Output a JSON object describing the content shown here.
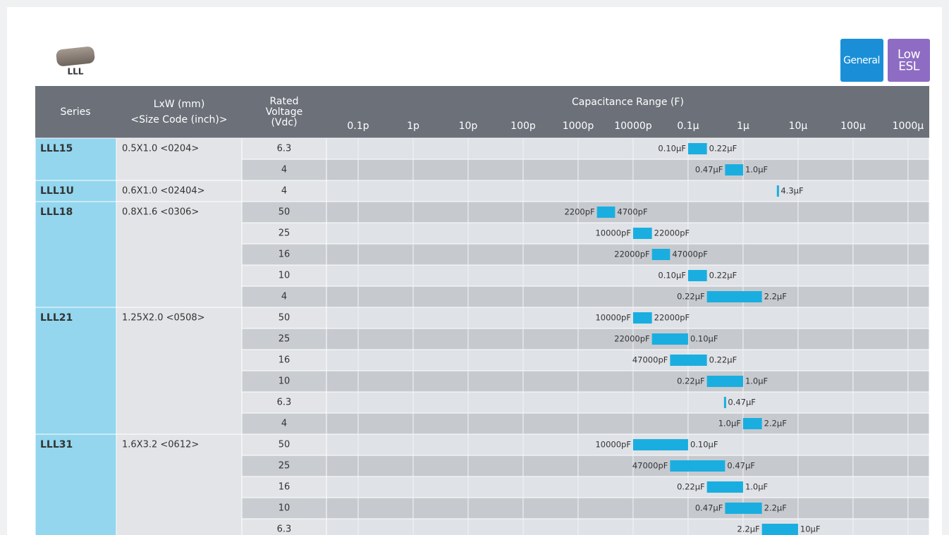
{
  "header": {
    "product_label": "LLL",
    "badges": [
      [
        "General"
      ],
      [
        "Low",
        "ESL"
      ]
    ]
  },
  "table": {
    "columns": [
      [
        "Series"
      ],
      [
        "LxW (mm)",
        "<Size Code (inch)>"
      ],
      [
        "Rated",
        "Voltage",
        "(Vdc)"
      ]
    ]
  },
  "chart_data": {
    "type": "range_bar",
    "title": "Capacitance Range (F)",
    "log": true,
    "grid": true,
    "color": "#1aaee0",
    "xlim": [
      2.65e-14,
      0.00243
    ],
    "xticks": [
      {
        "value": 1e-13,
        "label": "0.1p"
      },
      {
        "value": 1e-12,
        "label": "1p"
      },
      {
        "value": 1e-11,
        "label": "10p"
      },
      {
        "value": 1e-10,
        "label": "100p"
      },
      {
        "value": 1e-09,
        "label": "1000p"
      },
      {
        "value": 1e-08,
        "label": "10000p"
      },
      {
        "value": 1e-07,
        "label": "0.1µ"
      },
      {
        "value": 1e-06,
        "label": "1µ"
      },
      {
        "value": 1e-05,
        "label": "10µ"
      },
      {
        "value": 0.0001,
        "label": "100µ"
      },
      {
        "value": 0.001,
        "label": "1000µ"
      }
    ],
    "groups": [
      {
        "series": "LLL15",
        "size": "0.5X1.0 <0204>",
        "rows": [
          {
            "voltage": 6.3,
            "values": [
              1e-07,
              2.2e-07
            ],
            "value_labels": [
              "0.10µF",
              "0.22µF"
            ]
          },
          {
            "voltage": 4,
            "values": [
              4.7e-07,
              1e-06
            ],
            "value_labels": [
              "0.47µF",
              "1.0µF"
            ]
          }
        ]
      },
      {
        "series": "LLL1U",
        "size": "0.6X1.0 <02404>",
        "rows": [
          {
            "voltage": 4,
            "values": [
              4.3e-06
            ],
            "value_labels": [
              "4.3µF"
            ]
          }
        ]
      },
      {
        "series": "LLL18",
        "size": "0.8X1.6 <0306>",
        "rows": [
          {
            "voltage": 50,
            "values": [
              2.2e-09,
              4.7e-09
            ],
            "value_labels": [
              "2200pF",
              "4700pF"
            ]
          },
          {
            "voltage": 25,
            "values": [
              1e-08,
              2.2e-08
            ],
            "value_labels": [
              "10000pF",
              "22000pF"
            ]
          },
          {
            "voltage": 16,
            "values": [
              2.2e-08,
              4.7e-08
            ],
            "value_labels": [
              "22000pF",
              "47000pF"
            ]
          },
          {
            "voltage": 10,
            "values": [
              1e-07,
              2.2e-07
            ],
            "value_labels": [
              "0.10µF",
              "0.22µF"
            ]
          },
          {
            "voltage": 4,
            "values": [
              2.2e-07,
              2.2e-06
            ],
            "value_labels": [
              "0.22µF",
              "2.2µF"
            ]
          }
        ]
      },
      {
        "series": "LLL21",
        "size": "1.25X2.0 <0508>",
        "rows": [
          {
            "voltage": 50,
            "values": [
              1e-08,
              2.2e-08
            ],
            "value_labels": [
              "10000pF",
              "22000pF"
            ]
          },
          {
            "voltage": 25,
            "values": [
              2.2e-08,
              1e-07
            ],
            "value_labels": [
              "22000pF",
              "0.10µF"
            ]
          },
          {
            "voltage": 16,
            "values": [
              4.7e-08,
              2.2e-07
            ],
            "value_labels": [
              "47000pF",
              "0.22µF"
            ]
          },
          {
            "voltage": 10,
            "values": [
              2.2e-07,
              1e-06
            ],
            "value_labels": [
              "0.22µF",
              "1.0µF"
            ]
          },
          {
            "voltage": 6.3,
            "values": [
              4.7e-07
            ],
            "value_labels": [
              "0.47µF"
            ]
          },
          {
            "voltage": 4,
            "values": [
              1e-06,
              2.2e-06
            ],
            "value_labels": [
              "1.0µF",
              "2.2µF"
            ]
          }
        ]
      },
      {
        "series": "LLL31",
        "size": "1.6X3.2 <0612>",
        "rows": [
          {
            "voltage": 50,
            "values": [
              1e-08,
              1e-07
            ],
            "value_labels": [
              "10000pF",
              "0.10µF"
            ]
          },
          {
            "voltage": 25,
            "values": [
              4.7e-08,
              4.7e-07
            ],
            "value_labels": [
              "47000pF",
              "0.47µF"
            ]
          },
          {
            "voltage": 16,
            "values": [
              2.2e-07,
              1e-06
            ],
            "value_labels": [
              "0.22µF",
              "1.0µF"
            ]
          },
          {
            "voltage": 10,
            "values": [
              4.7e-07,
              2.2e-06
            ],
            "value_labels": [
              "0.47µF",
              "2.2µF"
            ]
          },
          {
            "voltage": 6.3,
            "values": [
              2.2e-06,
              1e-05
            ],
            "value_labels": [
              "2.2µF",
              "10µF"
            ]
          }
        ]
      }
    ]
  }
}
